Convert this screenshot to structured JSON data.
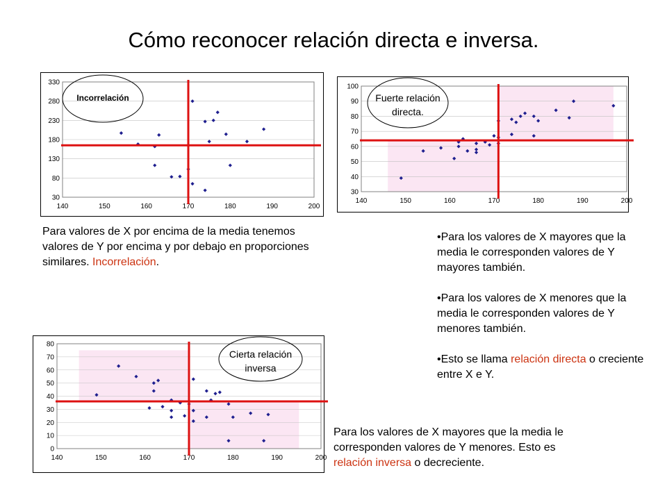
{
  "slide": {
    "title": "Cómo reconocer relación directa e inversa."
  },
  "colors": {
    "points": "#1f1f8f",
    "mean_lines": "#dd1111",
    "quadrant_fill": "#fbe6f3",
    "highlight_text": "#cc3311"
  },
  "chart_data": [
    {
      "id": "incorrelacion",
      "type": "scatter",
      "annotation": "Incorrelación",
      "xlim": [
        140,
        200
      ],
      "ylim": [
        30,
        330
      ],
      "xticks": [
        140,
        150,
        160,
        170,
        180,
        190,
        200
      ],
      "yticks": [
        30,
        80,
        130,
        180,
        230,
        280,
        330
      ],
      "mean_x": 170,
      "mean_y": 165,
      "shaded_quadrants": [],
      "points": [
        [
          154,
          197
        ],
        [
          158,
          168
        ],
        [
          162,
          162
        ],
        [
          162,
          113
        ],
        [
          163,
          192
        ],
        [
          166,
          83
        ],
        [
          168,
          84
        ],
        [
          170,
          103
        ],
        [
          171,
          280
        ],
        [
          171,
          65
        ],
        [
          174,
          227
        ],
        [
          174,
          48
        ],
        [
          175,
          175
        ],
        [
          176,
          230
        ],
        [
          177,
          251
        ],
        [
          179,
          194
        ],
        [
          180,
          113
        ],
        [
          184,
          175
        ],
        [
          188,
          207
        ]
      ]
    },
    {
      "id": "directa",
      "type": "scatter",
      "annotation_line1": "Fuerte relación",
      "annotation_line2": "directa.",
      "xlim": [
        140,
        200
      ],
      "ylim": [
        30,
        100
      ],
      "xticks": [
        140,
        150,
        160,
        170,
        180,
        190,
        200
      ],
      "yticks": [
        30,
        40,
        50,
        60,
        70,
        80,
        90,
        100
      ],
      "mean_x": 171,
      "mean_y": 64,
      "shaded_quadrants": [
        {
          "x": [
            146,
            171
          ],
          "y": [
            30,
            64
          ]
        },
        {
          "x": [
            171,
            197
          ],
          "y": [
            64,
            100
          ]
        }
      ],
      "points": [
        [
          149,
          39
        ],
        [
          154,
          57
        ],
        [
          158,
          59
        ],
        [
          161,
          52
        ],
        [
          162,
          60
        ],
        [
          162,
          63
        ],
        [
          163,
          65
        ],
        [
          164,
          57
        ],
        [
          166,
          56
        ],
        [
          166,
          58
        ],
        [
          166,
          62
        ],
        [
          168,
          63
        ],
        [
          169,
          61
        ],
        [
          170,
          67
        ],
        [
          171,
          62
        ],
        [
          171,
          77
        ],
        [
          171,
          66
        ],
        [
          174,
          68
        ],
        [
          174,
          78
        ],
        [
          175,
          76
        ],
        [
          176,
          80
        ],
        [
          177,
          82
        ],
        [
          179,
          80
        ],
        [
          179,
          67
        ],
        [
          180,
          77
        ],
        [
          184,
          84
        ],
        [
          187,
          79
        ],
        [
          188,
          90
        ],
        [
          197,
          87
        ]
      ]
    },
    {
      "id": "inversa",
      "type": "scatter",
      "annotation_line1": "Cierta relación",
      "annotation_line2": "inversa",
      "xlim": [
        140,
        200
      ],
      "ylim": [
        0,
        80
      ],
      "xticks": [
        140,
        150,
        160,
        170,
        180,
        190,
        200
      ],
      "yticks": [
        0,
        10,
        20,
        30,
        40,
        50,
        60,
        70,
        80
      ],
      "mean_x": 170,
      "mean_y": 36,
      "shaded_quadrants": [
        {
          "x": [
            145,
            170
          ],
          "y": [
            36,
            75
          ]
        },
        {
          "x": [
            170,
            195
          ],
          "y": [
            0,
            36
          ]
        }
      ],
      "points": [
        [
          149,
          41
        ],
        [
          154,
          63
        ],
        [
          158,
          55
        ],
        [
          161,
          31
        ],
        [
          162,
          44
        ],
        [
          162,
          50
        ],
        [
          163,
          52
        ],
        [
          164,
          32
        ],
        [
          166,
          24
        ],
        [
          166,
          29
        ],
        [
          166,
          37
        ],
        [
          168,
          35
        ],
        [
          169,
          25
        ],
        [
          170,
          34
        ],
        [
          171,
          53
        ],
        [
          171,
          29
        ],
        [
          171,
          21
        ],
        [
          174,
          44
        ],
        [
          174,
          24
        ],
        [
          175,
          37
        ],
        [
          176,
          42
        ],
        [
          177,
          43
        ],
        [
          179,
          6
        ],
        [
          179,
          34
        ],
        [
          180,
          24
        ],
        [
          184,
          27
        ],
        [
          187,
          6
        ],
        [
          188,
          26
        ]
      ]
    }
  ],
  "texts": {
    "incorrelacion": {
      "body": "Para valores de X por encima de la media tenemos valores de Y por encima y por debajo en proporciones similares. ",
      "highlight": "Incorrelación",
      "tail": "."
    },
    "directa": {
      "bullet1": "•Para los valores de X mayores que la media le corresponden valores de Y mayores también.",
      "bullet2": "•Para los valores de X menores que la media le corresponden valores de Y menores también.",
      "bullet3_pre": "•Esto se llama ",
      "bullet3_highlight": "relación directa",
      "bullet3_post": " o creciente entre X e Y."
    },
    "inversa": {
      "body": "Para los valores de X mayores que la media le corresponden valores de Y menores. Esto es ",
      "highlight": "relación inversa",
      "tail": " o decreciente."
    }
  }
}
